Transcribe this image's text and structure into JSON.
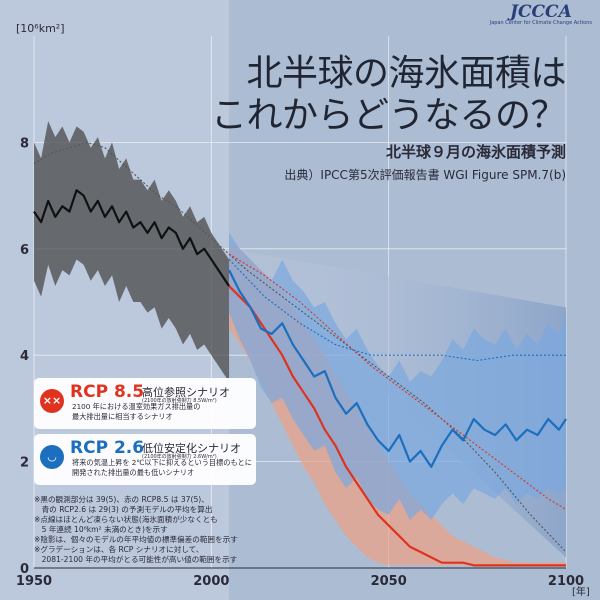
{
  "logo": {
    "text": "JCCCA",
    "tagline": "Japan Center for Climate Change Actions"
  },
  "header": {
    "title_line1": "北半球の海氷面積は",
    "title_line2": "これからどうなるの？",
    "subtitle": "北半球９月の海氷面積予測",
    "source": "出典）IPCC第5次評価報告書 WGI Figure SPM.7(b)"
  },
  "legend": {
    "rcp85": {
      "name": "RCP 8.5",
      "title": "高位参照シナリオ",
      "sub": "(2100年の放射強制力 8.5W/m²)",
      "desc_line1": "2100 年における温室効果ガス排出量の",
      "desc_line2": "最大排出量に相当するシナリオ",
      "color": "#e0331f",
      "icon": "dead-face-icon"
    },
    "rcp26": {
      "name": "RCP 2.6",
      "title": "低位安定化シナリオ",
      "sub": "(2100年の放射強制力 2.6W/m²)",
      "desc_line1": "将来の気温上昇を 2℃以下に抑えるという目標のもとに",
      "desc_line2": "開発された排出量の最も低いシナリオ",
      "color": "#1b6fbe",
      "icon": "smile-face-icon"
    }
  },
  "notes": [
    "※黒の観測部分は 39(5)、赤の RCP8.5 は 37(5)、",
    "　青の RCP2.6 は 29(3) の予測モデルの平均を算出",
    "※点線はほとんど凍らない状態(海氷面積が少なくとも",
    "　5 年連続 10⁶km² 未満のとき)を示す",
    "※陰影は、個々のモデルの年平均値の標準偏差の範囲を示す",
    "※グラデーションは、各 RCP シナリオに対して、",
    "　2081-2100 年の平均がとる可能性が高い値の範囲を示す"
  ],
  "chart_data": {
    "type": "line",
    "title": "北半球９月の海氷面積予測",
    "ylabel": "[10⁶km²]",
    "xlabel": "[年]",
    "xlim": [
      1950,
      2100
    ],
    "ylim": [
      0,
      10
    ],
    "x_ticks": [
      "1950",
      "2000",
      "2050",
      "2100"
    ],
    "y_ticks": [
      "0",
      "2",
      "4",
      "6",
      "8"
    ],
    "y_tick_values": [
      0,
      2,
      4,
      6,
      8
    ],
    "x_tick_values": [
      1950,
      2000,
      2050,
      2100
    ],
    "grid": true,
    "series": [
      {
        "name": "historical",
        "color": "#111111",
        "band_color": "#4a4a4a",
        "x": [
          1950,
          1952,
          1954,
          1956,
          1958,
          1960,
          1962,
          1964,
          1966,
          1968,
          1970,
          1972,
          1974,
          1976,
          1978,
          1980,
          1982,
          1984,
          1986,
          1988,
          1990,
          1992,
          1994,
          1996,
          1998,
          2000,
          2002,
          2004,
          2005
        ],
        "y": [
          6.7,
          6.5,
          6.9,
          6.6,
          6.8,
          6.7,
          7.1,
          7.0,
          6.7,
          6.9,
          6.6,
          6.8,
          6.5,
          6.7,
          6.4,
          6.5,
          6.3,
          6.5,
          6.2,
          6.4,
          6.3,
          6.0,
          6.2,
          5.9,
          6.0,
          5.8,
          5.6,
          5.4,
          5.3
        ],
        "lower": [
          5.4,
          5.1,
          5.7,
          5.3,
          5.6,
          5.5,
          5.8,
          5.7,
          5.4,
          5.6,
          5.3,
          5.5,
          5.0,
          5.3,
          5.0,
          5.0,
          4.8,
          4.9,
          4.5,
          4.7,
          4.5,
          4.2,
          4.4,
          4.1,
          4.2,
          4.0,
          3.8,
          3.6,
          3.5
        ],
        "upper": [
          8.0,
          7.7,
          8.4,
          8.1,
          8.3,
          8.0,
          8.3,
          8.2,
          7.9,
          8.1,
          7.7,
          8.0,
          7.5,
          7.7,
          7.3,
          7.3,
          7.1,
          7.3,
          6.9,
          7.1,
          6.9,
          6.6,
          6.8,
          6.5,
          6.6,
          6.3,
          6.1,
          5.9,
          5.8
        ]
      },
      {
        "name": "RCP 8.5",
        "color": "#e0331f",
        "band_color": "#f0a184",
        "x": [
          2005,
          2008,
          2011,
          2014,
          2017,
          2020,
          2023,
          2026,
          2029,
          2032,
          2035,
          2038,
          2041,
          2044,
          2047,
          2050,
          2053,
          2056,
          2059,
          2062,
          2065,
          2068,
          2071,
          2074,
          2077,
          2080,
          2083,
          2086,
          2089,
          2092,
          2095,
          2098,
          2100
        ],
        "y": [
          5.3,
          5.1,
          4.9,
          4.6,
          4.3,
          4.0,
          3.6,
          3.3,
          3.0,
          2.6,
          2.3,
          1.9,
          1.6,
          1.3,
          1.0,
          0.8,
          0.6,
          0.4,
          0.3,
          0.2,
          0.1,
          0.1,
          0.1,
          0.05,
          0.05,
          0.05,
          0.05,
          0.05,
          0.05,
          0.05,
          0.05,
          0.05,
          0.05
        ],
        "lower": [
          4.5,
          4.2,
          3.9,
          3.5,
          3.1,
          2.7,
          2.3,
          1.9,
          1.6,
          1.2,
          0.9,
          0.6,
          0.4,
          0.2,
          0.1,
          0.05,
          0.05,
          0.05,
          0.05,
          0.05,
          0.05,
          0.05,
          0.05,
          0.05,
          0.05,
          0.05,
          0.05,
          0.05,
          0.05,
          0.05,
          0.05,
          0.05,
          0.05
        ],
        "upper": [
          6.1,
          6.0,
          5.8,
          5.6,
          5.4,
          5.2,
          4.9,
          4.6,
          4.3,
          4.0,
          3.6,
          3.3,
          3.0,
          2.7,
          2.3,
          2.0,
          1.7,
          1.4,
          1.2,
          1.0,
          0.8,
          0.6,
          0.5,
          0.4,
          0.3,
          0.2,
          0.15,
          0.1,
          0.1,
          0.1,
          0.1,
          0.1,
          0.1
        ]
      },
      {
        "name": "RCP 2.6",
        "color": "#1b6fbe",
        "band_color": "#7aa8de",
        "x": [
          2005,
          2008,
          2011,
          2014,
          2017,
          2020,
          2023,
          2026,
          2029,
          2032,
          2035,
          2038,
          2041,
          2044,
          2047,
          2050,
          2053,
          2056,
          2059,
          2062,
          2065,
          2068,
          2071,
          2074,
          2077,
          2080,
          2083,
          2086,
          2089,
          2092,
          2095,
          2098,
          2100
        ],
        "y": [
          5.6,
          5.2,
          4.9,
          4.5,
          4.4,
          4.6,
          4.2,
          3.9,
          3.6,
          3.7,
          3.2,
          2.9,
          3.1,
          2.7,
          2.4,
          2.2,
          2.5,
          2.0,
          2.2,
          1.9,
          2.3,
          2.6,
          2.4,
          2.8,
          2.6,
          2.5,
          2.7,
          2.4,
          2.6,
          2.5,
          2.8,
          2.6,
          2.8
        ],
        "lower": [
          4.8,
          4.3,
          3.9,
          3.4,
          3.1,
          3.2,
          2.8,
          2.5,
          2.2,
          2.3,
          1.8,
          1.5,
          1.7,
          1.3,
          1.1,
          1.0,
          1.3,
          0.9,
          1.1,
          0.9,
          1.2,
          1.4,
          1.2,
          1.5,
          1.4,
          1.3,
          1.5,
          1.2,
          1.4,
          1.3,
          1.5,
          1.4,
          1.5
        ],
        "upper": [
          6.3,
          6.0,
          5.8,
          5.6,
          5.4,
          5.8,
          5.4,
          5.2,
          4.9,
          5.0,
          4.6,
          4.3,
          4.5,
          4.1,
          3.8,
          3.6,
          3.9,
          3.5,
          3.7,
          3.6,
          3.9,
          4.3,
          4.1,
          4.5,
          4.3,
          4.2,
          4.5,
          4.1,
          4.4,
          4.2,
          4.6,
          4.4,
          4.8
        ]
      }
    ],
    "dotted_lines": [
      {
        "color": "#555555",
        "x": [
          1950,
          1955,
          1960,
          1965,
          1970,
          1975,
          1980,
          1985,
          1990,
          1995,
          2000,
          2005,
          2010,
          2020,
          2030,
          2040,
          2050,
          2060,
          2070,
          2080,
          2090,
          2100
        ],
        "y": [
          7.6,
          7.8,
          7.9,
          8.0,
          7.9,
          7.6,
          7.3,
          7.0,
          6.8,
          6.5,
          6.2,
          5.9,
          5.6,
          5.1,
          4.6,
          4.1,
          3.6,
          3.1,
          2.5,
          1.8,
          1.0,
          0.3
        ]
      },
      {
        "color": "#e0331f",
        "x": [
          2005,
          2015,
          2025,
          2035,
          2045,
          2055,
          2065,
          2075,
          2085,
          2095,
          2100
        ],
        "y": [
          5.9,
          5.5,
          5.0,
          4.4,
          3.8,
          3.3,
          2.8,
          2.3,
          1.8,
          1.3,
          1.1
        ]
      },
      {
        "color": "#1b6fbe",
        "x": [
          2005,
          2015,
          2025,
          2035,
          2045,
          2055,
          2065,
          2075,
          2085,
          2095,
          2100
        ],
        "y": [
          5.8,
          5.1,
          4.6,
          4.2,
          4.0,
          4.0,
          4.0,
          3.9,
          4.0,
          4.0,
          4.0
        ]
      }
    ],
    "gradient_wedge": {
      "x_start": 2005,
      "y_start": 6.0,
      "x_end": 2100,
      "y_end_top": 4.9,
      "y_end_bottom": 0.2
    }
  }
}
